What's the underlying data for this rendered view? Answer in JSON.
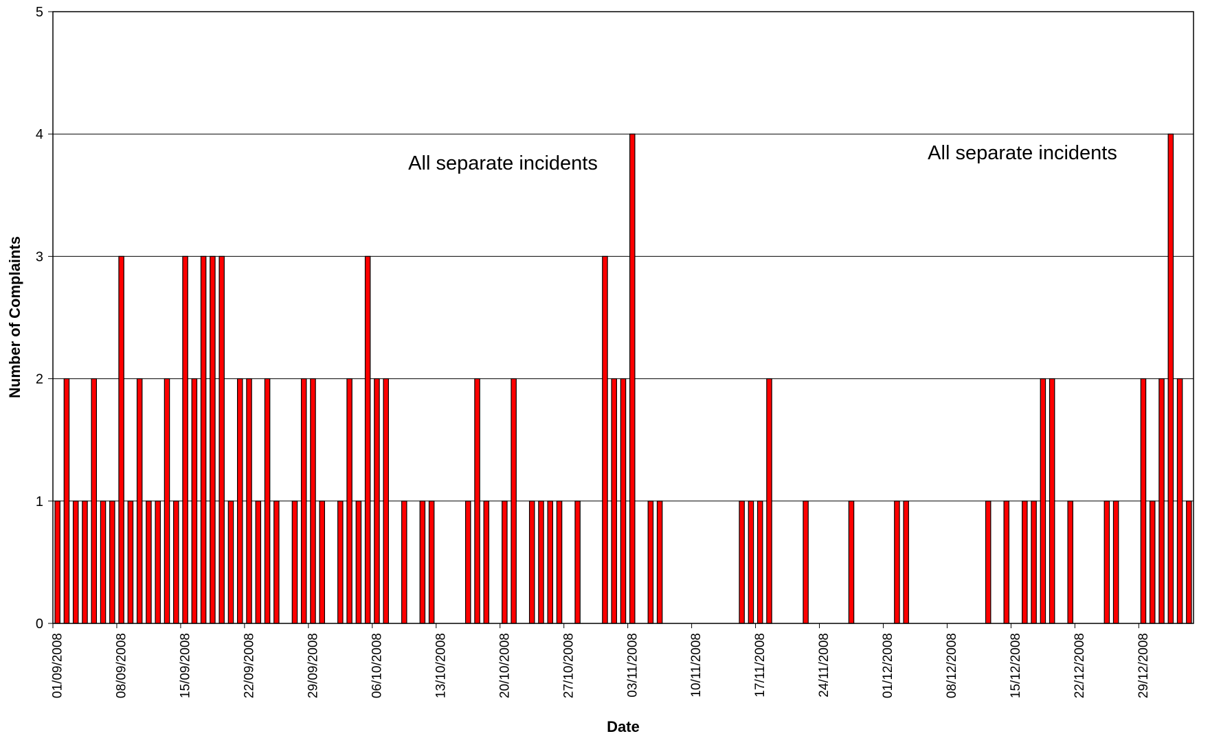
{
  "chart_data": {
    "type": "bar",
    "title": "",
    "xlabel": "Date",
    "ylabel": "Number of Complaints",
    "ylim": [
      0,
      5
    ],
    "yticks": [
      0,
      1,
      2,
      3,
      4,
      5
    ],
    "grid": true,
    "legend": "none",
    "bar_color": "#ff0000",
    "bar_edge_color": "#000000",
    "start_date": "01/09/2008",
    "end_date": "31/12/2008",
    "tick_labels": [
      "01/09/2008",
      "08/09/2008",
      "15/09/2008",
      "22/09/2008",
      "29/09/2008",
      "06/10/2008",
      "13/10/2008",
      "20/10/2008",
      "27/10/2008",
      "03/11/2008",
      "10/11/2008",
      "17/11/2008",
      "24/11/2008",
      "01/12/2008",
      "08/12/2008",
      "15/12/2008",
      "22/12/2008",
      "29/12/2008"
    ],
    "values": [
      1,
      2,
      1,
      1,
      2,
      1,
      1,
      3,
      1,
      2,
      1,
      1,
      2,
      1,
      3,
      2,
      3,
      3,
      3,
      1,
      2,
      2,
      1,
      2,
      1,
      0,
      1,
      2,
      2,
      1,
      0,
      1,
      2,
      1,
      3,
      2,
      2,
      0,
      1,
      0,
      1,
      1,
      0,
      0,
      0,
      1,
      2,
      1,
      0,
      1,
      2,
      0,
      1,
      1,
      1,
      1,
      0,
      1,
      0,
      0,
      3,
      2,
      2,
      4,
      0,
      1,
      1,
      0,
      0,
      0,
      0,
      0,
      0,
      0,
      0,
      1,
      1,
      1,
      2,
      0,
      0,
      0,
      1,
      0,
      0,
      0,
      0,
      1,
      0,
      0,
      0,
      0,
      1,
      1,
      0,
      0,
      0,
      0,
      0,
      0,
      0,
      0,
      1,
      0,
      1,
      0,
      1,
      1,
      2,
      2,
      0,
      1,
      0,
      0,
      0,
      1,
      1,
      0,
      0,
      2,
      1,
      2,
      4,
      2,
      1
    ],
    "annotations": [
      "All separate incidents",
      "All separate incidents"
    ]
  }
}
